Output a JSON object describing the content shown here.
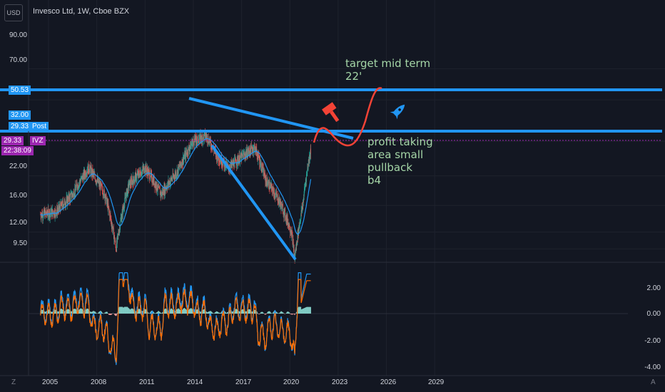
{
  "header": {
    "currency": "USD",
    "title": "Invesco Ltd, 1W, Cboe BZX"
  },
  "y_axis_labels": [
    "90.00",
    "70.00",
    "32.00",
    "22.00",
    "16.00",
    "12.00",
    "9.50"
  ],
  "price_tags": {
    "hline_value": "50.53",
    "post_label": "Post",
    "post_value": "29.33",
    "symbol": "IVZ",
    "last_value": "29.33",
    "countdown": "22:38:09",
    "extra_value": "32.00"
  },
  "osc_axis_labels": [
    "2.00",
    "0.00",
    "-2.00",
    "-4.00"
  ],
  "x_axis_labels": [
    "2005",
    "2008",
    "2011",
    "2014",
    "2017",
    "2020",
    "2023",
    "2026",
    "2029"
  ],
  "bottom": {
    "left": "Z",
    "right": "A"
  },
  "annotations": {
    "target": "target mid term\n22'",
    "profit": "profit taking\narea small\npullback\nb4"
  },
  "colors": {
    "blue": "#2196f3",
    "red": "#f44336",
    "green_text": "#a5d6a7",
    "purple": "#9c27b0",
    "candle_up": "#26a69a",
    "candle_down": "#ef5350"
  },
  "icons": [
    "hammer-icon",
    "rocket-icon"
  ],
  "chart_data": {
    "type": "line",
    "title": "Invesco Ltd, 1W, Cboe BZX",
    "x": [
      2004.5,
      2005.5,
      2006.5,
      2007.5,
      2008.5,
      2009.2,
      2010,
      2011,
      2012,
      2013,
      2014,
      2014.8,
      2015.5,
      2016.2,
      2017,
      2017.8,
      2018.5,
      2019.3,
      2020.1,
      2020.3,
      2020.8,
      2021.3
    ],
    "series": [
      {
        "values": [
          14.5,
          15,
          18,
          24,
          18,
          10,
          20,
          24,
          18,
          23,
          32,
          34,
          27,
          24,
          27,
          30,
          21,
          17,
          12,
          9,
          16,
          29.3
        ]
      }
    ],
    "horizontal_lines": [
      50.53,
      30
    ],
    "ylim": [
      8,
      110
    ],
    "oscillator_ylim": [
      -4.3,
      3.2
    ]
  }
}
